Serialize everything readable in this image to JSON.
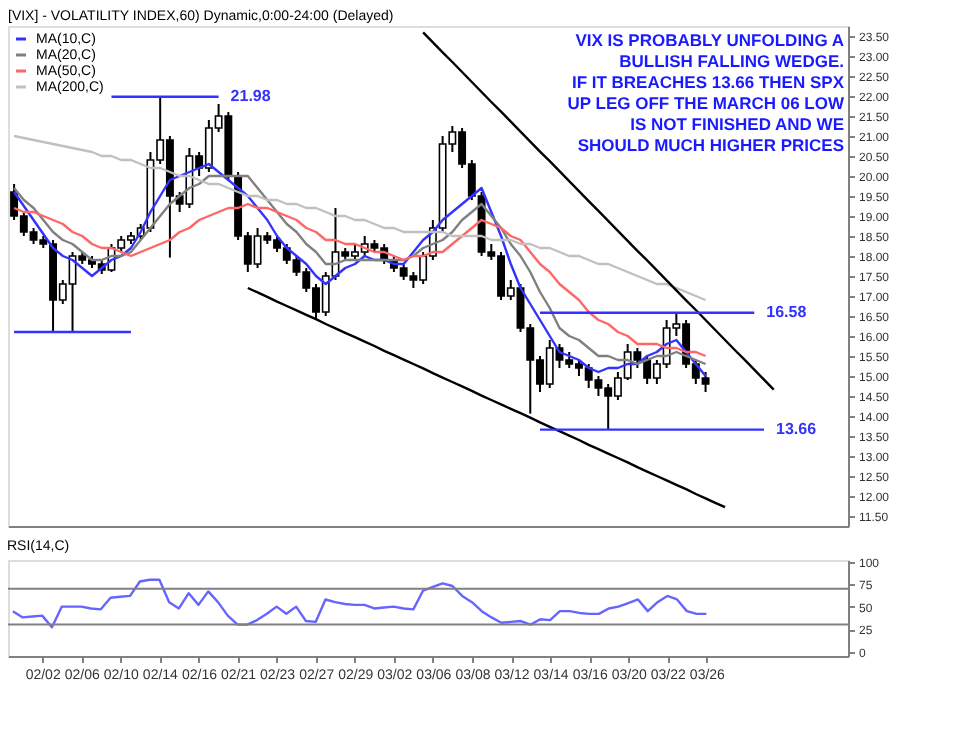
{
  "chart_data": [
    {
      "type": "candlestick",
      "title": "[VIX] - VOLATILITY INDEX,60) Dynamic,0:00-24:00 (Delayed)",
      "annotations": [
        "VIX IS PROBABLY UNFOLDING A\nBULLISH FALLING WEDGE.\nIF IT BREACHES 13.66 THEN SPX\nUP LEG OFF THE MARCH 06 LOW\nIS NOT FINISHED AND WE\nSHOULD MUCH HIGHER PRICES"
      ],
      "categories": [
        null,
        null,
        null,
        null,
        null,
        null,
        null,
        null,
        null,
        null,
        null,
        null,
        null,
        null,
        null,
        null,
        null,
        null,
        null,
        null,
        null,
        null,
        null,
        null,
        null,
        null,
        null,
        null,
        null,
        null,
        null,
        null,
        null,
        null,
        null,
        null,
        null,
        null,
        null,
        null,
        null,
        null,
        null,
        null,
        null,
        null,
        null,
        null,
        null,
        null,
        null,
        null,
        null,
        null,
        null,
        null,
        null,
        null,
        null,
        null,
        null,
        null,
        null,
        null,
        null,
        null,
        null,
        null,
        null,
        null,
        null,
        null,
        null,
        null,
        null,
        null,
        null,
        null,
        null,
        null,
        null,
        null,
        null,
        null,
        null,
        null
      ],
      "ohlc": [
        [
          19.6,
          19.8,
          18.9,
          19.0
        ],
        [
          19.0,
          19.1,
          18.5,
          18.6
        ],
        [
          18.6,
          18.7,
          18.3,
          18.4
        ],
        [
          18.4,
          18.5,
          18.2,
          18.3
        ],
        [
          18.3,
          18.4,
          16.1,
          16.9
        ],
        [
          16.9,
          17.4,
          16.8,
          17.3
        ],
        [
          17.3,
          18.1,
          16.1,
          18.0
        ],
        [
          18.0,
          18.1,
          17.8,
          17.9
        ],
        [
          17.9,
          18.0,
          17.7,
          17.8
        ],
        [
          17.8,
          17.9,
          17.55,
          17.65
        ],
        [
          17.65,
          18.3,
          17.6,
          18.2
        ],
        [
          18.2,
          18.5,
          18.1,
          18.4
        ],
        [
          18.4,
          18.6,
          18.3,
          18.5
        ],
        [
          18.5,
          18.8,
          18.4,
          18.7
        ],
        [
          18.7,
          20.6,
          18.6,
          20.4
        ],
        [
          20.4,
          21.98,
          20.3,
          20.9
        ],
        [
          20.9,
          21.0,
          17.96,
          19.5
        ],
        [
          19.5,
          19.6,
          19.1,
          19.3
        ],
        [
          19.3,
          20.7,
          19.2,
          20.5
        ],
        [
          20.5,
          20.6,
          20.0,
          20.2
        ],
        [
          20.2,
          21.4,
          20.1,
          21.2
        ],
        [
          21.2,
          21.8,
          21.1,
          21.5
        ],
        [
          21.5,
          21.6,
          19.9,
          20.0
        ],
        [
          20.0,
          20.1,
          18.4,
          18.5
        ],
        [
          18.5,
          18.6,
          17.6,
          17.8
        ],
        [
          17.8,
          18.7,
          17.7,
          18.5
        ],
        [
          18.5,
          18.6,
          18.3,
          18.4
        ],
        [
          18.4,
          18.5,
          18.1,
          18.2
        ],
        [
          18.2,
          18.3,
          17.8,
          17.9
        ],
        [
          17.9,
          18.0,
          17.5,
          17.6
        ],
        [
          17.6,
          17.7,
          17.1,
          17.2
        ],
        [
          17.2,
          17.3,
          16.4,
          16.6
        ],
        [
          16.6,
          17.6,
          16.5,
          17.5
        ],
        [
          17.5,
          19.2,
          17.4,
          18.1
        ],
        [
          18.1,
          18.2,
          17.9,
          18.0
        ],
        [
          18.0,
          18.3,
          17.9,
          18.1
        ],
        [
          18.1,
          18.5,
          18.0,
          18.3
        ],
        [
          18.3,
          18.4,
          18.1,
          18.2
        ],
        [
          18.2,
          18.3,
          17.8,
          17.9
        ],
        [
          17.9,
          18.0,
          17.6,
          17.7
        ],
        [
          17.7,
          17.8,
          17.4,
          17.5
        ],
        [
          17.5,
          17.6,
          17.2,
          17.4
        ],
        [
          17.4,
          18.1,
          17.3,
          18.0
        ],
        [
          18.0,
          18.9,
          17.9,
          18.7
        ],
        [
          18.7,
          21.0,
          18.6,
          20.8
        ],
        [
          20.8,
          21.25,
          20.6,
          21.1
        ],
        [
          21.1,
          21.2,
          20.2,
          20.3
        ],
        [
          20.3,
          20.4,
          19.4,
          19.5
        ],
        [
          19.5,
          19.6,
          18.0,
          18.1
        ],
        [
          18.1,
          18.3,
          17.9,
          18.0
        ],
        [
          18.0,
          18.1,
          16.9,
          17.0
        ],
        [
          17.0,
          17.4,
          16.9,
          17.2
        ],
        [
          17.2,
          17.3,
          16.1,
          16.2
        ],
        [
          16.2,
          16.3,
          14.06,
          15.4
        ],
        [
          15.4,
          15.5,
          14.6,
          14.8
        ],
        [
          14.8,
          15.9,
          14.7,
          15.7
        ],
        [
          15.7,
          15.8,
          15.2,
          15.4
        ],
        [
          15.4,
          15.6,
          15.2,
          15.3
        ],
        [
          15.3,
          15.4,
          15.0,
          15.2
        ],
        [
          15.2,
          15.3,
          14.7,
          14.9
        ],
        [
          14.9,
          15.0,
          14.5,
          14.7
        ],
        [
          14.7,
          14.8,
          13.66,
          14.5
        ],
        [
          14.5,
          15.1,
          14.4,
          14.95
        ],
        [
          14.95,
          15.8,
          14.9,
          15.6
        ],
        [
          15.6,
          15.7,
          15.2,
          15.4
        ],
        [
          15.4,
          15.5,
          14.8,
          14.95
        ],
        [
          14.95,
          15.4,
          14.8,
          15.3
        ],
        [
          15.3,
          16.4,
          15.2,
          16.2
        ],
        [
          16.2,
          16.58,
          16.0,
          16.3
        ],
        [
          16.3,
          16.4,
          15.2,
          15.3
        ],
        [
          15.3,
          15.4,
          14.8,
          14.95
        ],
        [
          14.95,
          15.1,
          14.6,
          14.8
        ],
        null,
        null,
        null,
        null,
        null,
        null,
        null,
        null,
        null,
        null,
        null,
        null,
        null,
        null
      ],
      "series": [
        {
          "name": "MA(10,C)",
          "type": "line",
          "color": "#3333ff",
          "values": [
            19.6,
            19.25,
            18.9,
            18.55,
            18.2,
            18.0,
            17.9,
            17.7,
            17.5,
            17.7,
            17.9,
            18.0,
            18.2,
            18.6,
            19.1,
            19.5,
            19.9,
            20.0,
            20.1,
            20.2,
            20.3,
            20.1,
            19.9,
            19.7,
            19.5,
            19.2,
            18.9,
            18.5,
            18.2,
            18.0,
            17.8,
            17.5,
            17.3,
            17.5,
            17.7,
            17.8,
            18.0,
            17.9,
            17.9,
            17.8,
            17.8,
            18.1,
            18.4,
            18.6,
            18.9,
            19.1,
            19.3,
            19.5,
            19.7,
            19.1,
            18.5,
            17.8,
            17.2,
            16.8,
            16.4,
            16.0,
            15.6,
            15.5,
            15.4,
            15.2,
            15.1,
            15.2,
            15.2,
            15.3,
            15.3,
            15.5,
            15.6,
            15.8,
            15.9,
            15.6,
            15.3,
            15.0,
            null,
            null,
            null,
            null,
            null,
            null,
            null,
            null,
            null,
            null,
            null,
            null,
            null,
            null
          ]
        },
        {
          "name": "MA(20,C)",
          "type": "line",
          "color": "#808080",
          "values": [
            19.7,
            19.4,
            19.2,
            18.9,
            18.6,
            18.4,
            18.3,
            18.1,
            17.9,
            17.9,
            18.0,
            18.0,
            18.1,
            18.4,
            18.7,
            19.0,
            19.3,
            19.5,
            19.7,
            19.8,
            20.0,
            20.0,
            20.0,
            20.0,
            20.0,
            19.7,
            19.4,
            19.1,
            18.8,
            18.6,
            18.3,
            18.1,
            17.8,
            17.8,
            17.9,
            17.9,
            17.9,
            17.9,
            17.9,
            17.9,
            17.9,
            18.0,
            18.2,
            18.3,
            18.4,
            18.6,
            18.9,
            19.1,
            19.3,
            19.0,
            18.7,
            18.3,
            18.0,
            17.6,
            17.1,
            16.7,
            16.2,
            16.0,
            15.9,
            15.7,
            15.5,
            15.5,
            15.4,
            15.4,
            15.3,
            15.4,
            15.5,
            15.5,
            15.6,
            15.5,
            15.4,
            15.3,
            null,
            null,
            null,
            null,
            null,
            null,
            null,
            null,
            null,
            null,
            null,
            null,
            null,
            null
          ]
        },
        {
          "name": "MA(50,C)",
          "type": "line",
          "color": "#ff6666",
          "values": [
            19.2,
            19.1,
            19.1,
            19.0,
            18.9,
            18.8,
            18.6,
            18.5,
            18.3,
            18.2,
            18.2,
            18.1,
            18.0,
            18.1,
            18.2,
            18.3,
            18.4,
            18.6,
            18.7,
            18.9,
            19.0,
            19.1,
            19.2,
            19.2,
            19.3,
            19.2,
            19.2,
            19.1,
            19.0,
            18.9,
            18.7,
            18.6,
            18.4,
            18.4,
            18.3,
            18.3,
            18.2,
            18.1,
            18.1,
            18.0,
            17.9,
            18.0,
            18.0,
            18.1,
            18.1,
            18.3,
            18.5,
            18.7,
            18.9,
            18.8,
            18.7,
            18.5,
            18.4,
            18.1,
            17.8,
            17.6,
            17.3,
            17.1,
            16.9,
            16.6,
            16.4,
            16.3,
            16.1,
            16.0,
            15.8,
            15.8,
            15.8,
            15.7,
            15.7,
            15.6,
            15.6,
            15.5,
            null,
            null,
            null,
            null,
            null,
            null,
            null,
            null,
            null,
            null,
            null,
            null,
            null,
            null
          ]
        },
        {
          "name": "MA(200,C)",
          "type": "line",
          "color": "#c0c0c0",
          "values": [
            21.0,
            20.95,
            20.9,
            20.85,
            20.8,
            20.75,
            20.7,
            20.65,
            20.6,
            20.5,
            20.5,
            20.4,
            20.4,
            20.3,
            20.2,
            20.2,
            20.1,
            20.0,
            20.0,
            19.9,
            19.8,
            19.8,
            19.7,
            19.6,
            19.5,
            19.5,
            19.4,
            19.4,
            19.3,
            19.3,
            19.2,
            19.2,
            19.1,
            19.0,
            19.0,
            18.9,
            18.9,
            18.8,
            18.7,
            18.7,
            18.6,
            18.6,
            18.6,
            18.6,
            18.6,
            18.5,
            18.5,
            18.5,
            18.5,
            18.4,
            18.4,
            18.4,
            18.3,
            18.3,
            18.2,
            18.2,
            18.1,
            18.0,
            18.0,
            17.9,
            17.8,
            17.8,
            17.7,
            17.6,
            17.5,
            17.4,
            17.3,
            17.3,
            17.2,
            17.1,
            17.0,
            16.9,
            null,
            null,
            null,
            null,
            null,
            null,
            null,
            null,
            null,
            null,
            null,
            null,
            null,
            null
          ]
        },
        {
          "type": "line",
          "color": "#000000",
          "values": [
            null,
            null,
            null,
            null,
            null,
            null,
            null,
            null,
            null,
            null,
            null,
            null,
            null,
            null,
            null,
            null,
            null,
            null,
            null,
            null,
            null,
            null,
            null,
            null,
            null,
            null,
            null,
            null,
            null,
            null,
            null,
            null,
            null,
            null,
            null,
            null,
            null,
            null,
            null,
            null,
            null,
            null,
            23.59,
            23.34,
            23.09,
            22.85,
            22.6,
            22.35,
            22.1,
            21.85,
            21.61,
            21.36,
            21.11,
            20.86,
            20.61,
            20.37,
            20.12,
            19.87,
            19.62,
            19.37,
            19.13,
            18.88,
            18.63,
            18.38,
            18.13,
            17.89,
            17.64,
            17.39,
            17.14,
            16.89,
            16.65,
            16.4,
            16.15,
            15.9,
            15.65,
            15.41,
            15.16,
            14.91,
            14.66,
            null,
            null,
            null,
            null,
            null,
            null,
            null
          ]
        },
        {
          "type": "line",
          "color": "#000000",
          "values": [
            null,
            null,
            null,
            null,
            null,
            null,
            null,
            null,
            null,
            null,
            null,
            null,
            null,
            null,
            null,
            null,
            null,
            null,
            null,
            null,
            null,
            null,
            null,
            null,
            17.2,
            17.09,
            16.98,
            16.86,
            16.75,
            16.64,
            16.53,
            16.42,
            16.3,
            16.19,
            16.08,
            15.97,
            15.86,
            15.75,
            15.63,
            15.52,
            15.41,
            15.3,
            15.19,
            15.07,
            14.96,
            14.85,
            14.74,
            14.63,
            14.51,
            14.4,
            14.29,
            14.18,
            14.07,
            13.96,
            13.84,
            13.73,
            13.62,
            13.51,
            13.4,
            13.28,
            13.17,
            13.06,
            12.95,
            12.84,
            12.72,
            12.61,
            12.5,
            12.39,
            12.28,
            12.17,
            12.05,
            11.94,
            11.83,
            11.72,
            null,
            null,
            null,
            null,
            null,
            null,
            null,
            null,
            null,
            null,
            null,
            null
          ]
        },
        {
          "name": "21.98",
          "type": "line",
          "color": "#3333ff",
          "values": [
            null,
            null,
            null,
            null,
            null,
            null,
            null,
            null,
            null,
            null,
            21.98,
            21.98,
            21.98,
            21.98,
            21.98,
            21.98,
            21.98,
            21.98,
            21.98,
            21.98,
            21.98,
            21.98,
            null,
            null,
            null,
            null,
            null,
            null,
            null,
            null,
            null,
            null,
            null,
            null,
            null,
            null,
            null,
            null,
            null,
            null,
            null,
            null,
            null,
            null,
            null,
            null,
            null,
            null,
            null,
            null,
            null,
            null,
            null,
            null,
            null,
            null,
            null,
            null,
            null,
            null,
            null,
            null,
            null,
            null,
            null,
            null,
            null,
            null,
            null,
            null,
            null,
            null,
            null,
            null,
            null,
            null,
            null,
            null,
            null,
            null,
            null,
            null,
            null,
            null,
            null,
            null
          ]
        },
        {
          "type": "line",
          "color": "#3333ff",
          "values": [
            16.1,
            16.1,
            16.1,
            16.1,
            16.1,
            16.1,
            16.1,
            16.1,
            16.1,
            16.1,
            16.1,
            16.1,
            16.1,
            null,
            null,
            null,
            null,
            null,
            null,
            null,
            null,
            null,
            null,
            null,
            null,
            null,
            null,
            null,
            null,
            null,
            null,
            null,
            null,
            null,
            null,
            null,
            null,
            null,
            null,
            null,
            null,
            null,
            null,
            null,
            null,
            null,
            null,
            null,
            null,
            null,
            null,
            null,
            null,
            null,
            null,
            null,
            null,
            null,
            null,
            null,
            null,
            null,
            null,
            null,
            null,
            null,
            null,
            null,
            null,
            null,
            null,
            null,
            null,
            null,
            null,
            null,
            null,
            null,
            null,
            null,
            null,
            null,
            null,
            null,
            null,
            null
          ]
        },
        {
          "name": "16.58",
          "type": "line",
          "color": "#3333ff",
          "values": [
            null,
            null,
            null,
            null,
            null,
            null,
            null,
            null,
            null,
            null,
            null,
            null,
            null,
            null,
            null,
            null,
            null,
            null,
            null,
            null,
            null,
            null,
            null,
            null,
            null,
            null,
            null,
            null,
            null,
            null,
            null,
            null,
            null,
            null,
            null,
            null,
            null,
            null,
            null,
            null,
            null,
            null,
            null,
            null,
            null,
            null,
            null,
            null,
            null,
            null,
            null,
            null,
            null,
            null,
            16.58,
            16.58,
            16.58,
            16.58,
            16.58,
            16.58,
            16.58,
            16.58,
            16.58,
            16.58,
            16.58,
            16.58,
            16.58,
            16.58,
            16.58,
            16.58,
            16.58,
            16.58,
            16.58,
            16.58,
            16.58,
            16.58,
            16.58,
            null,
            null,
            null,
            null,
            null,
            null,
            null,
            null,
            null
          ]
        },
        {
          "name": "13.66",
          "type": "line",
          "color": "#3333ff",
          "values": [
            null,
            null,
            null,
            null,
            null,
            null,
            null,
            null,
            null,
            null,
            null,
            null,
            null,
            null,
            null,
            null,
            null,
            null,
            null,
            null,
            null,
            null,
            null,
            null,
            null,
            null,
            null,
            null,
            null,
            null,
            null,
            null,
            null,
            null,
            null,
            null,
            null,
            null,
            null,
            null,
            null,
            null,
            null,
            null,
            null,
            null,
            null,
            null,
            null,
            null,
            null,
            null,
            null,
            null,
            13.66,
            13.66,
            13.66,
            13.66,
            13.66,
            13.66,
            13.66,
            13.66,
            13.66,
            13.66,
            13.66,
            13.66,
            13.66,
            13.66,
            13.66,
            13.66,
            13.66,
            13.66,
            13.66,
            13.66,
            13.66,
            13.66,
            13.66,
            13.66,
            null,
            null,
            null,
            null,
            null,
            null,
            null,
            null
          ]
        }
      ],
      "ylim": [
        11.25,
        23.75
      ],
      "yticks": [
        {
          "value": 11.5,
          "label": "11.50"
        },
        {
          "value": 12,
          "label": "12.00"
        },
        {
          "value": 12.5,
          "label": "12.50"
        },
        {
          "value": 13,
          "label": "13.00"
        },
        {
          "value": 13.5,
          "label": "13.50"
        },
        {
          "value": 14,
          "label": "14.00"
        },
        {
          "value": 14.5,
          "label": "14.50"
        },
        {
          "value": 15,
          "label": "15.00"
        },
        {
          "value": 15.5,
          "label": "15.50"
        },
        {
          "value": 16,
          "label": "16.00"
        },
        {
          "value": 16.5,
          "label": "16.50"
        },
        {
          "value": 17,
          "label": "17.00"
        },
        {
          "value": 17.5,
          "label": "17.50"
        },
        {
          "value": 18,
          "label": "18.00"
        },
        {
          "value": 18.5,
          "label": "18.50"
        },
        {
          "value": 19,
          "label": "19.00"
        },
        {
          "value": 19.5,
          "label": "19.50"
        },
        {
          "value": 20,
          "label": "20.00"
        },
        {
          "value": 20.5,
          "label": "20.50"
        },
        {
          "value": 21,
          "label": "21.00"
        },
        {
          "value": 21.5,
          "label": "21.50"
        },
        {
          "value": 22,
          "label": "22.00"
        },
        {
          "value": 22.5,
          "label": "22.50"
        },
        {
          "value": 23,
          "label": "23.00"
        },
        {
          "value": 23.5,
          "label": "23.50"
        }
      ],
      "tick_labels": "y",
      "legend": "top left"
    },
    {
      "type": "line",
      "title": "RSI(14,C)",
      "categories": [
        null,
        null,
        null,
        "02/02",
        null,
        null,
        null,
        "02/06",
        null,
        null,
        null,
        "02/10",
        null,
        null,
        null,
        "02/14",
        null,
        null,
        null,
        "02/16",
        null,
        null,
        null,
        "02/21",
        null,
        null,
        null,
        "02/23",
        null,
        null,
        null,
        "02/27",
        null,
        null,
        null,
        "02/29",
        null,
        null,
        null,
        "03/02",
        null,
        null,
        null,
        "03/06",
        null,
        null,
        null,
        "03/08",
        null,
        null,
        null,
        "03/12",
        null,
        null,
        null,
        "03/14",
        null,
        null,
        null,
        "03/16",
        null,
        null,
        null,
        "03/20",
        null,
        null,
        null,
        "03/22",
        null,
        null,
        null,
        "03/26",
        null,
        null,
        null,
        null,
        null,
        null,
        null,
        null,
        null,
        null,
        null,
        null,
        null,
        null
      ],
      "series": [
        {
          "color": "#6666ff",
          "values": [
            45,
            38,
            39,
            40,
            27,
            50,
            50,
            50,
            48,
            47,
            60,
            61,
            62,
            78,
            80,
            80,
            55,
            48,
            65,
            52,
            67,
            55,
            40,
            30,
            30,
            35,
            42,
            50,
            42,
            50,
            34,
            33,
            58,
            55,
            53,
            52,
            52,
            48,
            49,
            50,
            48,
            47,
            68,
            72,
            76,
            73,
            62,
            55,
            45,
            38,
            32,
            33,
            34,
            30,
            36,
            35,
            45,
            45,
            43,
            42,
            42,
            48,
            50,
            54,
            58,
            45,
            55,
            62,
            58,
            45,
            42,
            42,
            null,
            null,
            null,
            null,
            null,
            null,
            null,
            null,
            null,
            null,
            null,
            null,
            null,
            null
          ]
        }
      ],
      "ref_lines": [
        {
          "axis": "y",
          "value": 70,
          "color": "#808080"
        },
        {
          "axis": "y",
          "value": 30,
          "color": "#808080"
        }
      ],
      "ylim": [
        -5,
        102
      ],
      "yticks": [
        0,
        25,
        50,
        75,
        100
      ]
    }
  ]
}
